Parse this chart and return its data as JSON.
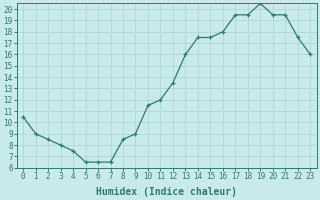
{
  "x": [
    0,
    1,
    2,
    3,
    4,
    5,
    6,
    7,
    8,
    9,
    10,
    11,
    12,
    13,
    14,
    15,
    16,
    17,
    18,
    19,
    20,
    21,
    22,
    23
  ],
  "y": [
    10.5,
    9.0,
    8.5,
    8.0,
    7.5,
    6.5,
    6.5,
    6.5,
    8.5,
    9.0,
    11.5,
    12.0,
    13.5,
    16.0,
    17.5,
    17.5,
    18.0,
    19.5,
    19.5,
    20.5,
    19.5,
    19.5,
    17.5,
    16.0
  ],
  "line_color": "#2e7b6e",
  "marker": "+",
  "marker_color": "#2e7b6e",
  "bg_color": "#c8eaea",
  "grid_color": "#b0d8d8",
  "xlabel": "Humidex (Indice chaleur)",
  "ylim": [
    6,
    20.5
  ],
  "xlim": [
    -0.5,
    23.5
  ],
  "yticks": [
    6,
    7,
    8,
    9,
    10,
    11,
    12,
    13,
    14,
    15,
    16,
    17,
    18,
    19,
    20
  ],
  "xticks": [
    0,
    1,
    2,
    3,
    4,
    5,
    6,
    7,
    8,
    9,
    10,
    11,
    12,
    13,
    14,
    15,
    16,
    17,
    18,
    19,
    20,
    21,
    22,
    23
  ],
  "tick_label_fontsize": 5.5,
  "xlabel_fontsize": 7.0,
  "tick_color": "#2e7b6e",
  "spine_color": "#2e7b6e",
  "linewidth": 0.9,
  "markersize": 3.5,
  "markeredgewidth": 0.9
}
